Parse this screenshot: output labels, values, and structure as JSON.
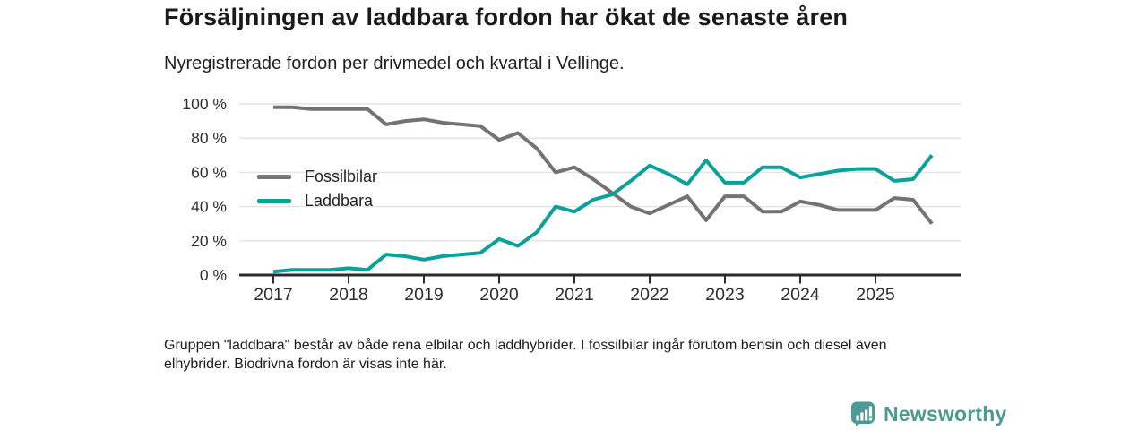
{
  "header": {
    "title": "Försäljningen av laddbara fordon har ökat de senaste åren",
    "subtitle": "Nyregistrerade fordon per drivmedel och kvartal i Vellinge."
  },
  "chart_data": {
    "type": "line",
    "title": "Försäljningen av laddbara fordon har ökat de senaste åren",
    "subtitle": "Nyregistrerade fordon per drivmedel och kvartal i Vellinge.",
    "x_unit": "quarter",
    "x_start": "2017 Q1",
    "x_end": "2025 Q4",
    "quarters_per_year": 4,
    "x_tick_labels": [
      "2017",
      "2018",
      "2019",
      "2020",
      "2021",
      "2022",
      "2023",
      "2024",
      "2025"
    ],
    "y_tick_labels": [
      "0 %",
      "20 %",
      "40 %",
      "60 %",
      "80 %",
      "100 %"
    ],
    "ylabel": "",
    "xlabel": "",
    "ylim": [
      0,
      100
    ],
    "grid": "horizontal",
    "legend_position": "inside-upper-left",
    "series": [
      {
        "name": "Fossilbilar",
        "color": "#737373",
        "values": [
          98,
          98,
          97,
          97,
          97,
          97,
          88,
          90,
          91,
          89,
          88,
          87,
          79,
          83,
          74,
          60,
          63,
          56,
          48,
          40,
          36,
          41,
          46,
          32,
          46,
          46,
          37,
          37,
          43,
          41,
          38,
          38,
          38,
          45,
          44,
          30
        ]
      },
      {
        "name": "Laddbara",
        "color": "#08a29a",
        "values": [
          2,
          3,
          3,
          3,
          4,
          3,
          12,
          11,
          9,
          11,
          12,
          13,
          21,
          17,
          25,
          40,
          37,
          44,
          47,
          55,
          64,
          59,
          53,
          67,
          54,
          54,
          63,
          63,
          57,
          59,
          61,
          62,
          62,
          55,
          56,
          70
        ]
      }
    ]
  },
  "footnote": {
    "lines": [
      "Gruppen \"laddbara\" består av både rena elbilar och laddhybrider. I fossilbilar ingår förutom bensin och diesel även",
      "elhybrider. Biodrivna fordon är visas inte här."
    ]
  },
  "logo": {
    "text": "Newsworthy",
    "icon": "bar-chart-speech-bubble-icon",
    "color": "#4a9a96"
  },
  "colors": {
    "background": "#ffffff",
    "title_text": "#1a1a1a",
    "axis_text": "#2e2e2e",
    "gridline": "#e3e3e3",
    "axis_line": "#2b2b2b",
    "legend_text": "#212121"
  }
}
